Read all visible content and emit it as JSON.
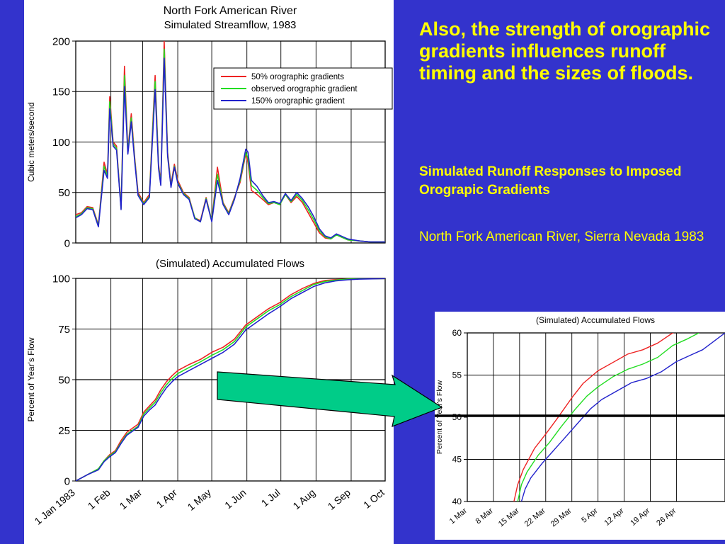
{
  "slide": {
    "headline": "Also, the strength of orographic gradients influences runoff timing and the sizes of floods.",
    "subhead": "Simulated Runoff Responses to Imposed Orograpic Gradients",
    "caption": "North Fork American River, Sierra Nevada 1983"
  },
  "colors": {
    "background": "#3333cc",
    "text": "#ffff00",
    "arrow": "#00cc88",
    "series_50": "#ee2222",
    "series_observed": "#22dd22",
    "series_150": "#2222cc"
  },
  "chart_data": [
    {
      "type": "line",
      "title": "North Fork American River",
      "subtitle": "Simulated Streamflow, 1983",
      "ylabel": "Cubic meters/second",
      "ylim": [
        0,
        200
      ],
      "yticks": [
        0,
        50,
        100,
        150,
        200
      ],
      "x_unit": "day of year",
      "xlim": [
        0,
        273
      ],
      "grid": true,
      "legend_position": "upper-right",
      "series": [
        {
          "name": "50% orographic gradients",
          "color": "#ee2222",
          "x": [
            0,
            5,
            10,
            15,
            20,
            25,
            28,
            30,
            33,
            36,
            40,
            43,
            46,
            49,
            52,
            55,
            60,
            65,
            70,
            73,
            75,
            78,
            81,
            84,
            87,
            90,
            95,
            100,
            105,
            110,
            115,
            120,
            125,
            130,
            135,
            140,
            145,
            150,
            152,
            155,
            160,
            165,
            170,
            175,
            180,
            185,
            190,
            195,
            200,
            205,
            210,
            215,
            220,
            225,
            230,
            240,
            250,
            260,
            273
          ],
          "y": [
            28,
            30,
            36,
            35,
            18,
            80,
            68,
            145,
            100,
            96,
            35,
            175,
            92,
            128,
            85,
            50,
            40,
            48,
            166,
            78,
            60,
            200,
            90,
            58,
            78,
            62,
            50,
            45,
            25,
            22,
            45,
            22,
            75,
            40,
            30,
            45,
            60,
            88,
            80,
            52,
            48,
            43,
            38,
            40,
            38,
            48,
            40,
            46,
            40,
            30,
            20,
            10,
            5,
            4,
            8,
            3,
            2,
            1,
            1
          ]
        },
        {
          "name": "observed orographic gradient",
          "color": "#22dd22",
          "x": [
            0,
            5,
            10,
            15,
            20,
            25,
            28,
            30,
            33,
            36,
            40,
            43,
            46,
            49,
            52,
            55,
            60,
            65,
            70,
            73,
            75,
            78,
            81,
            84,
            87,
            90,
            95,
            100,
            105,
            110,
            115,
            120,
            125,
            130,
            135,
            140,
            145,
            150,
            152,
            155,
            160,
            165,
            170,
            175,
            180,
            185,
            190,
            195,
            200,
            205,
            210,
            215,
            220,
            225,
            230,
            240,
            250,
            260,
            273
          ],
          "y": [
            26,
            29,
            35,
            34,
            17,
            76,
            66,
            140,
            98,
            94,
            34,
            166,
            90,
            124,
            83,
            48,
            39,
            46,
            160,
            76,
            58,
            192,
            88,
            56,
            76,
            60,
            49,
            44,
            25,
            21,
            44,
            22,
            68,
            39,
            29,
            44,
            62,
            90,
            84,
            57,
            52,
            45,
            39,
            40,
            38,
            48,
            41,
            48,
            42,
            33,
            23,
            12,
            6,
            4,
            8,
            3,
            2,
            1,
            1
          ]
        },
        {
          "name": "150% orographic gradient",
          "color": "#2222cc",
          "x": [
            0,
            5,
            10,
            15,
            20,
            25,
            28,
            30,
            33,
            36,
            40,
            43,
            46,
            49,
            52,
            55,
            60,
            65,
            70,
            73,
            75,
            78,
            81,
            84,
            87,
            90,
            95,
            100,
            105,
            110,
            115,
            120,
            125,
            130,
            135,
            140,
            145,
            150,
            152,
            155,
            160,
            165,
            170,
            175,
            180,
            185,
            190,
            195,
            200,
            205,
            210,
            215,
            220,
            225,
            230,
            240,
            250,
            260,
            273
          ],
          "y": [
            25,
            28,
            34,
            33,
            16,
            72,
            64,
            133,
            96,
            92,
            33,
            155,
            88,
            120,
            81,
            47,
            38,
            45,
            152,
            74,
            57,
            183,
            86,
            55,
            75,
            59,
            48,
            43,
            24,
            21,
            43,
            21,
            62,
            38,
            28,
            43,
            64,
            93,
            90,
            62,
            56,
            47,
            40,
            41,
            39,
            49,
            42,
            50,
            44,
            36,
            26,
            14,
            7,
            5,
            9,
            4,
            2,
            1,
            1
          ]
        }
      ]
    },
    {
      "type": "line",
      "title": "(Simulated) Accumulated Flows",
      "ylabel": "Percent of Year's Flow",
      "ylim": [
        0,
        100
      ],
      "yticks": [
        0,
        25,
        50,
        75,
        100
      ],
      "x_unit": "day of year",
      "xlim": [
        0,
        273
      ],
      "xticks": [
        0,
        31,
        59,
        90,
        120,
        151,
        181,
        212,
        243,
        273
      ],
      "xtick_labels": [
        "1 Jan 1983",
        "1 Feb",
        "1 Mar",
        "1 Apr",
        "1 May",
        "1 Jun",
        "1 Jul",
        "1 Aug",
        "1 Sep",
        "1 Oct"
      ],
      "highlight_line": 50,
      "grid": true,
      "series": [
        {
          "name": "50% orographic gradients",
          "color": "#ee2222",
          "x": [
            0,
            10,
            20,
            25,
            30,
            35,
            40,
            45,
            50,
            55,
            60,
            65,
            70,
            75,
            80,
            85,
            90,
            95,
            100,
            110,
            120,
            130,
            140,
            150,
            160,
            170,
            180,
            190,
            200,
            210,
            220,
            230,
            240,
            250,
            273
          ],
          "y": [
            0,
            3,
            6,
            10,
            13,
            15,
            20,
            24,
            26,
            28,
            34,
            37,
            40,
            45,
            49,
            52,
            54.5,
            56,
            57.5,
            60,
            63.5,
            66,
            70,
            77,
            81,
            85,
            88,
            92,
            95,
            97.5,
            99,
            99.4,
            99.7,
            99.8,
            99.9
          ]
        },
        {
          "name": "observed orographic gradient",
          "color": "#22dd22",
          "x": [
            0,
            10,
            20,
            25,
            30,
            35,
            40,
            45,
            50,
            55,
            60,
            65,
            70,
            75,
            80,
            85,
            90,
            95,
            100,
            110,
            120,
            130,
            140,
            150,
            160,
            170,
            180,
            190,
            200,
            210,
            220,
            230,
            240,
            250,
            273
          ],
          "y": [
            0,
            3,
            6,
            10,
            12.5,
            14.5,
            19,
            23,
            25,
            27,
            33,
            36,
            38.8,
            43.5,
            47.5,
            50.5,
            53,
            54.5,
            56,
            58.8,
            62,
            64.8,
            68.8,
            76,
            80,
            84,
            87,
            91,
            94,
            97,
            98.5,
            99.2,
            99.6,
            99.8,
            99.9
          ]
        },
        {
          "name": "150% orographic gradient",
          "color": "#2222cc",
          "x": [
            0,
            10,
            20,
            25,
            30,
            35,
            40,
            45,
            50,
            55,
            60,
            65,
            70,
            75,
            80,
            85,
            90,
            95,
            100,
            110,
            120,
            130,
            140,
            150,
            160,
            170,
            180,
            190,
            200,
            210,
            220,
            230,
            240,
            250,
            273
          ],
          "y": [
            0,
            3,
            5.5,
            9.5,
            12,
            14,
            18.5,
            22.5,
            24.5,
            26.5,
            32,
            35,
            37.5,
            42,
            46,
            49,
            51.5,
            53,
            54.5,
            57.5,
            60.5,
            63.5,
            67.5,
            74.5,
            78.5,
            82.5,
            86,
            90,
            93,
            96,
            97.8,
            98.8,
            99.3,
            99.6,
            99.9
          ]
        }
      ]
    },
    {
      "type": "line",
      "title": "(Simulated) Accumulated Flows",
      "ylabel": "Percent of Year's Flow",
      "ylim": [
        40,
        60
      ],
      "yticks": [
        40,
        45,
        50,
        55,
        60
      ],
      "x_unit": "day of year",
      "xlim": [
        59,
        128
      ],
      "xticks": [
        59,
        66,
        73,
        80,
        87,
        94,
        101,
        108,
        115
      ],
      "xtick_labels": [
        "1 Mar",
        "8 Mar",
        "15 Mar",
        "22 Mar",
        "29 Mar",
        "5 Apr",
        "12 Apr",
        "19 Apr",
        "26 Apr"
      ],
      "highlight_line": 50,
      "grid": true,
      "series": [
        {
          "name": "50% orographic gradients",
          "color": "#ee2222",
          "x": [
            71.5,
            72.5,
            74,
            77,
            80,
            83,
            87,
            90,
            94,
            98,
            102,
            106,
            110,
            114,
            118
          ],
          "y": [
            40,
            42,
            43.8,
            46.3,
            48,
            49.8,
            52.3,
            54,
            55.5,
            56.5,
            57.5,
            58,
            58.8,
            60,
            60.6
          ]
        },
        {
          "name": "observed orographic gradient",
          "color": "#22dd22",
          "x": [
            72.5,
            73.5,
            75,
            78,
            81,
            84,
            88,
            91,
            94,
            98,
            102,
            106,
            110,
            114,
            118,
            121
          ],
          "y": [
            40,
            42,
            43.5,
            45.5,
            47,
            48.8,
            51,
            52.5,
            53.6,
            54.8,
            55.7,
            56.3,
            57.1,
            58.5,
            59.3,
            60
          ]
        },
        {
          "name": "150% orographic gradient",
          "color": "#2222cc",
          "x": [
            73.5,
            74.5,
            76,
            79,
            82,
            85,
            89,
            92,
            95,
            99,
            103,
            107,
            111,
            115,
            119,
            122,
            125,
            128
          ],
          "y": [
            40,
            41.5,
            42.8,
            44.5,
            46,
            47.5,
            49.5,
            51,
            52.1,
            53.1,
            54.1,
            54.6,
            55.4,
            56.6,
            57.4,
            58,
            59,
            60
          ]
        }
      ]
    }
  ]
}
